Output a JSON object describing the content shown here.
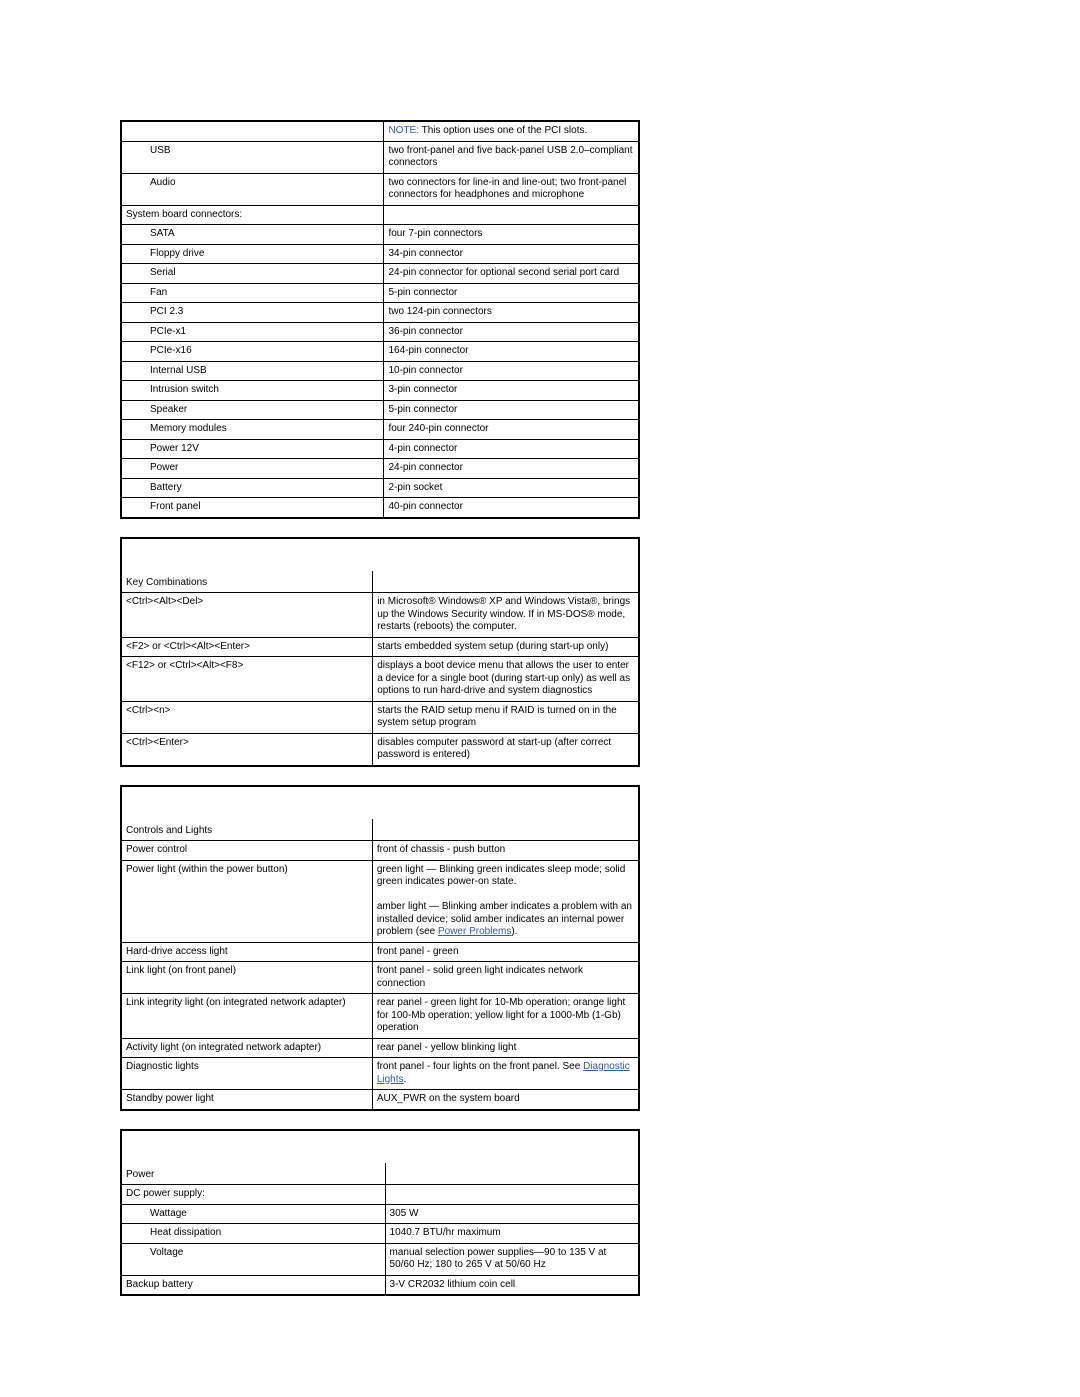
{
  "connectors_top": {
    "note_prefix": "NOTE: ",
    "note_text": "This option uses one of the PCI slots.",
    "usb_label": "USB",
    "usb_val": "two front-panel and five back-panel USB 2.0–compliant connectors",
    "audio_label": "Audio",
    "audio_val": "two connectors for line-in and line-out; two front-panel connectors for headphones and microphone",
    "sysboard_header": "System board connectors:",
    "rows": [
      {
        "l": "SATA",
        "r": "four 7-pin connectors"
      },
      {
        "l": "Floppy drive",
        "r": "34-pin connector"
      },
      {
        "l": "Serial",
        "r": "24-pin connector for optional second serial port card"
      },
      {
        "l": "Fan",
        "r": "5-pin connector"
      },
      {
        "l": "PCI 2.3",
        "r": "two 124-pin connectors"
      },
      {
        "l": "PCIe-x1",
        "r": "36-pin connector"
      },
      {
        "l": "PCIe-x16",
        "r": "164-pin connector"
      },
      {
        "l": "Internal USB",
        "r": "10-pin connector"
      },
      {
        "l": "Intrusion switch",
        "r": "3-pin connector"
      },
      {
        "l": "Speaker",
        "r": "5-pin connector"
      },
      {
        "l": "Memory modules",
        "r": "four 240-pin connector"
      },
      {
        "l": "Power 12V",
        "r": "4-pin connector"
      },
      {
        "l": "Power",
        "r": "24-pin connector"
      },
      {
        "l": "Battery",
        "r": "2-pin socket"
      },
      {
        "l": "Front panel",
        "r": "40-pin connector"
      }
    ]
  },
  "keycombos": {
    "header": "Key Combinations",
    "rows": [
      {
        "l": "<Ctrl><Alt><Del>",
        "r": "in Microsoft® Windows® XP and Windows Vista®, brings up the Windows Security window. If in MS-DOS® mode, restarts (reboots) the computer."
      },
      {
        "l": "<F2> or <Ctrl><Alt><Enter>",
        "r": "starts embedded system setup (during start-up only)"
      },
      {
        "l": "<F12> or <Ctrl><Alt><F8>",
        "r": "displays a boot device menu that allows the user to enter a device for a single boot (during start-up only) as well as options to run hard-drive and system diagnostics"
      },
      {
        "l": "<Ctrl><n>",
        "r": "starts the RAID setup menu if RAID is turned on in the system setup program"
      },
      {
        "l": "<Ctrl><Enter>",
        "r": "disables computer password at start-up (after correct password is entered)"
      }
    ]
  },
  "controls": {
    "header": "Controls and Lights",
    "r_pc_l": "Power control",
    "r_pc_r": "front of chassis - push button",
    "r_pl_l": "Power light (within the power button)",
    "r_pl_r1": "green light — Blinking green indicates sleep mode; solid green indicates power-on state.",
    "r_pl_r2a": "amber light — Blinking amber indicates a problem with an installed device; solid amber indicates an internal power problem (see ",
    "r_pl_link": "Power Problems",
    "r_pl_r2b": ").",
    "r_hd_l": "Hard-drive access light",
    "r_hd_r": "front panel - green",
    "r_ll_l": "Link light (on front panel)",
    "r_ll_r": "front panel - solid green light indicates network connection",
    "r_li_l": "Link integrity light (on integrated network adapter)",
    "r_li_r": "rear panel - green light for 10-Mb operation; orange light for 100-Mb operation; yellow light for a 1000-Mb (1-Gb) operation",
    "r_al_l": "Activity light (on integrated network adapter)",
    "r_al_r": "rear panel - yellow blinking light",
    "r_dl_l": "Diagnostic lights",
    "r_dl_r1": "front panel - four lights on the front panel. See ",
    "r_dl_link": "Diagnostic Lights",
    "r_dl_r2": ".",
    "r_sp_l": "Standby power light",
    "r_sp_r": "AUX_PWR on the system board"
  },
  "power": {
    "header": "Power",
    "dc_header": "DC power supply:",
    "rows_indented": [
      {
        "l": "Wattage",
        "r": "305 W"
      },
      {
        "l": "Heat dissipation",
        "r": "1040.7 BTU/hr maximum"
      },
      {
        "l": "Voltage",
        "r": "manual selection power supplies—90 to 135 V at 50/60 Hz; 180 to 265 V at 50/60 Hz"
      }
    ],
    "backup_l": "Backup battery",
    "backup_r": "3-V CR2032 lithium coin cell"
  }
}
